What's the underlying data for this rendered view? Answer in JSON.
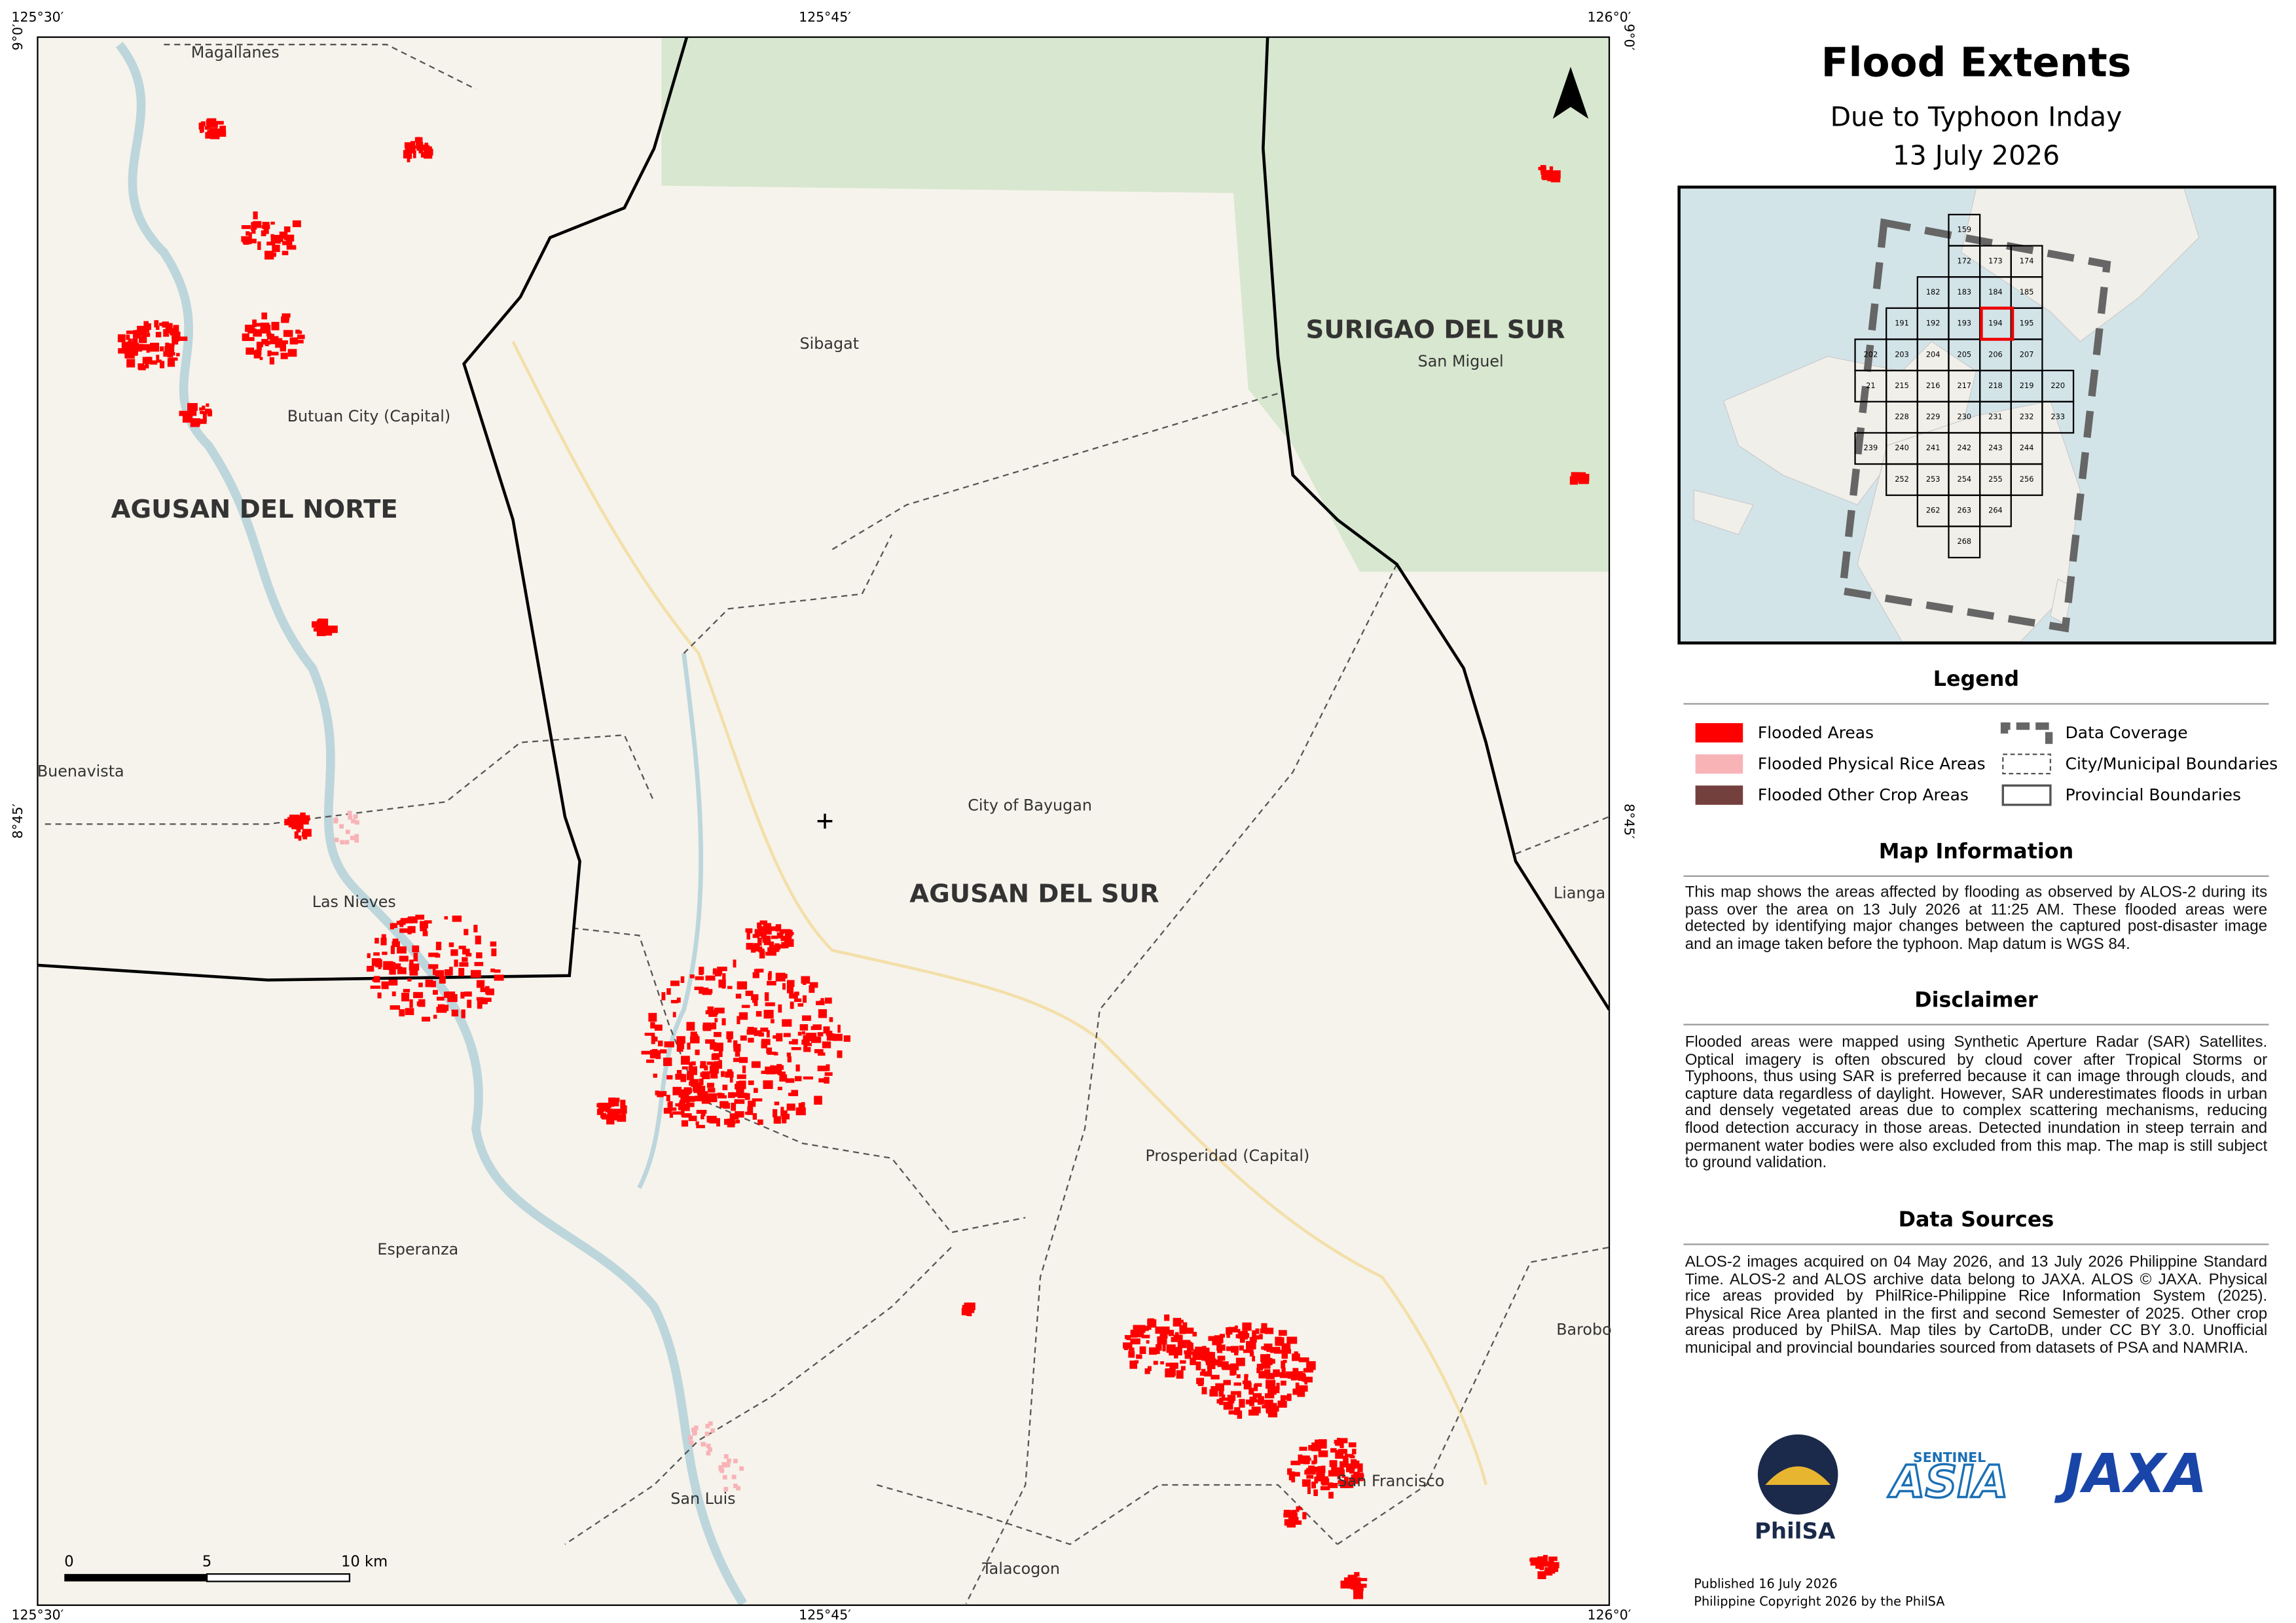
{
  "header": {
    "title": "Flood Extents",
    "subtitle": "Due to Typhoon Inday",
    "date": "13 July 2026"
  },
  "map": {
    "coordinates": {
      "top": [
        "125°30′",
        "125°45′",
        "126°0′"
      ],
      "bottom": [
        "125°30′",
        "125°45′",
        "126°0′"
      ],
      "left": [
        "9°0′",
        "8°45′"
      ],
      "right": [
        "9°0′",
        "8°45′"
      ]
    },
    "places": [
      "Magallanes",
      "Sibagat",
      "San Miguel",
      "Butuan City (Capital)",
      "Buenavista",
      "Las Nieves",
      "City of Bayugan",
      "Lianga",
      "Prosperidad (Capital)",
      "Esperanza",
      "Barobo",
      "San Francisco",
      "San Luis",
      "Talacogon"
    ],
    "provinces": [
      "AGUSAN DEL NORTE",
      "AGUSAN DEL SUR",
      "SURIGAO DEL SUR"
    ],
    "scale_bar": [
      "0",
      "5",
      "10 km"
    ]
  },
  "inset": {
    "tiles": [
      "159",
      "172",
      "173",
      "174",
      "182",
      "183",
      "184",
      "185",
      "191",
      "192",
      "193",
      "194",
      "195",
      "202",
      "203",
      "204",
      "205",
      "206",
      "207",
      "21",
      "215",
      "216",
      "217",
      "218",
      "219",
      "220",
      "228",
      "229",
      "230",
      "231",
      "232",
      "233",
      "239",
      "240",
      "241",
      "242",
      "243",
      "244",
      "252",
      "253",
      "254",
      "255",
      "256",
      "262",
      "263",
      "264",
      "268"
    ]
  },
  "legend": {
    "title": "Legend",
    "items": [
      "Flooded Areas",
      "Flooded Physical Rice Areas",
      "Flooded Other Crop Areas",
      "Data Coverage",
      "City/Municipal Boundaries",
      "Provincial Boundaries"
    ]
  },
  "map_information": {
    "title": "Map Information",
    "text": "This map shows the areas affected by flooding as observed by ALOS-2 during its pass over the area on 13 July 2026 at 11:25 AM. These flooded areas were detected by identifying major changes between the captured post-disaster image and an image taken before the typhoon. Map datum is WGS 84."
  },
  "disclaimer": {
    "title": "Disclaimer",
    "text": "Flooded areas were mapped using Synthetic Aperture Radar (SAR) Satellites. Optical imagery is often obscured by cloud cover after Tropical Storms or Typhoons, thus using SAR is preferred because it can image through clouds, and capture data regardless of daylight. However, SAR underestimates floods in urban and densely vegetated areas due to complex scattering mechanisms, reducing flood detection accuracy in those areas. Detected inundation in steep terrain and permanent water bodies were also excluded from this map. The map is still subject to ground validation."
  },
  "data_sources": {
    "title": "Data Sources",
    "text": "ALOS-2 images acquired on 04 May 2026, and 13 July 2026 Philippine Standard Time. ALOS-2 and ALOS archive data belong to JAXA. ALOS © JAXA. Physical rice areas provided by PhilRice-Philippine Rice Information System (2025). Physical Rice Area planted in the first and second Semester of 2025. Other crop areas produced by PhilSA. Map tiles by CartoDB, under CC BY 3.0. Unofficial municipal and provincial boundaries sourced from datasets of PSA and NAMRIA."
  },
  "logos": [
    "PhilSA",
    "SENTINEL",
    "ASIA",
    "JAXA"
  ],
  "footer": {
    "published": "Published 16 July 2026",
    "copyright": "Philippine Copyright 2026 by the PhilSA"
  }
}
